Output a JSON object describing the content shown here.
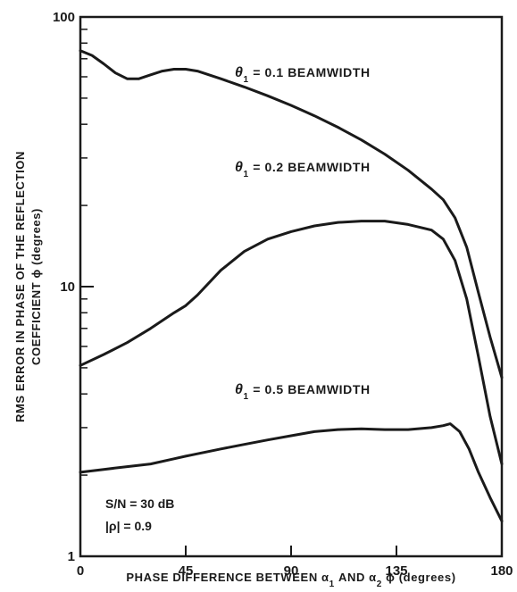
{
  "chart_data": {
    "type": "line",
    "title": "",
    "xlabel": "PHASE DIFFERENCE BETWEEN α1 AND α2 ϕ (degrees)",
    "ylabel_line1": "RMS ERROR IN PHASE OF THE REFLECTION",
    "ylabel_line2": "COEFFICIENT ϕ (degrees)",
    "xlim": [
      0,
      180
    ],
    "ylim": [
      1,
      100
    ],
    "yscale": "log",
    "xticks": [
      0,
      45,
      90,
      135,
      180
    ],
    "xtick_labels": [
      "0",
      "45",
      "90",
      "135",
      "180"
    ],
    "yticks": [
      1,
      10,
      100
    ],
    "ytick_labels": [
      "1",
      "10",
      "100"
    ],
    "grid": false,
    "series": [
      {
        "name": "θ1 = 0.1 BEAMWIDTH",
        "x": [
          0,
          5,
          10,
          15,
          20,
          25,
          30,
          35,
          40,
          45,
          50,
          60,
          70,
          80,
          90,
          100,
          110,
          120,
          130,
          140,
          150,
          155,
          160,
          165,
          170,
          175,
          180
        ],
        "y": [
          75,
          72,
          67,
          62,
          59,
          59,
          61,
          63,
          64,
          64,
          63,
          59,
          55,
          51,
          47,
          43,
          39,
          35,
          31,
          27,
          23,
          21,
          18,
          14,
          9.5,
          6.5,
          4.6
        ]
      },
      {
        "name": "θ1 = 0.2 BEAMWIDTH",
        "x": [
          0,
          10,
          20,
          30,
          40,
          45,
          50,
          60,
          70,
          80,
          90,
          100,
          110,
          120,
          130,
          140,
          150,
          155,
          160,
          165,
          170,
          175,
          180
        ],
        "y": [
          5.1,
          5.6,
          6.2,
          7.0,
          8.0,
          8.5,
          9.3,
          11.5,
          13.5,
          15.0,
          16.0,
          16.8,
          17.3,
          17.5,
          17.5,
          17.0,
          16.2,
          15.0,
          12.5,
          9.0,
          5.5,
          3.3,
          2.2
        ]
      },
      {
        "name": "θ1 = 0.5 BEAMWIDTH",
        "x": [
          0,
          10,
          20,
          30,
          40,
          45,
          50,
          60,
          70,
          80,
          90,
          100,
          110,
          120,
          130,
          140,
          150,
          155,
          158,
          162,
          166,
          170,
          175,
          180
        ],
        "y": [
          2.05,
          2.1,
          2.15,
          2.2,
          2.3,
          2.35,
          2.4,
          2.5,
          2.6,
          2.7,
          2.8,
          2.9,
          2.95,
          2.97,
          2.95,
          2.95,
          3.0,
          3.05,
          3.1,
          2.9,
          2.5,
          2.05,
          1.65,
          1.35
        ]
      }
    ],
    "annotations": [
      "S/N = 30 dB",
      "|ρ| = 0.9"
    ]
  }
}
